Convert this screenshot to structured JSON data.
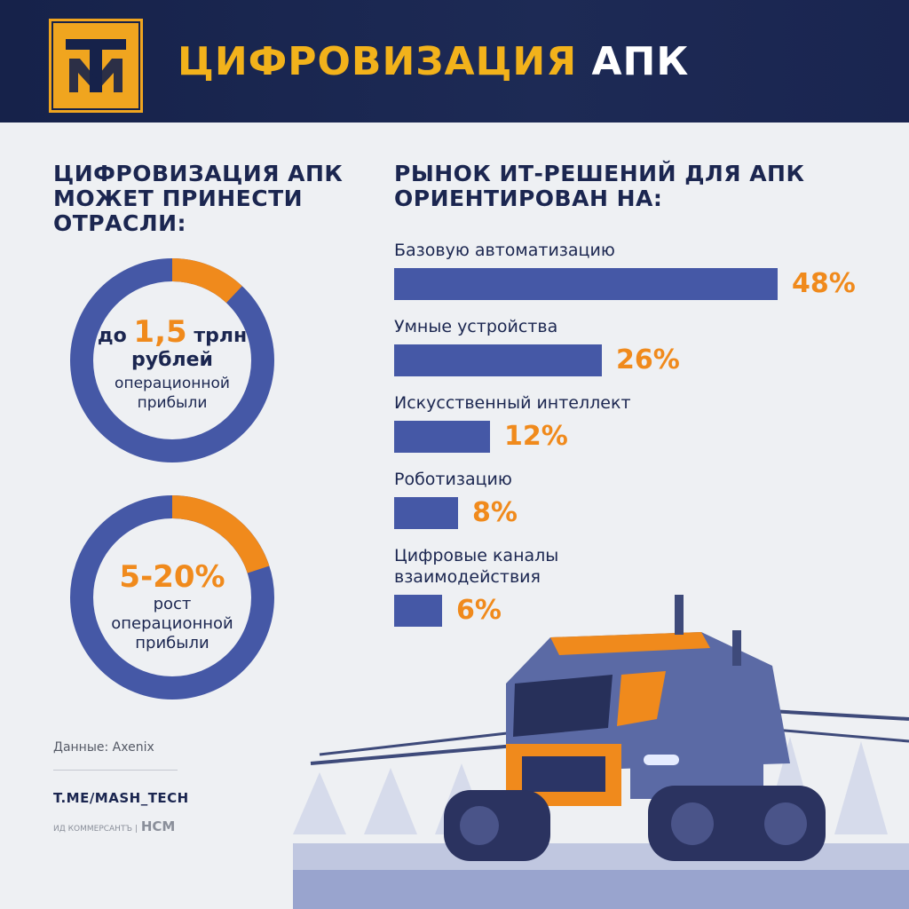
{
  "header": {
    "title_part1": "ЦИФРОВИЗАЦИЯ",
    "title_part2": "АПК",
    "logo_icon": "tm-logo-icon"
  },
  "left": {
    "heading": [
      "ЦИФРОВИЗАЦИЯ АПК",
      "МОЖЕТ ПРИНЕСТИ",
      "ОТРАСЛИ:"
    ],
    "donut1": {
      "prefix": "до",
      "value": "1,5",
      "unit": "трлн",
      "line2": "рублей",
      "line3": [
        "операционной",
        "прибыли"
      ],
      "highlight_fraction": 0.12
    },
    "donut2": {
      "value": "5-20%",
      "lines": [
        "рост",
        "операционной",
        "прибыли"
      ],
      "highlight_fraction": 0.2
    },
    "source": "Данные: Axenix",
    "channel": "T.ME/MASH_TECH",
    "credits": "ИД КОММЕРСАНТЪ",
    "credits_sep": "|",
    "credits_hcm": "HCM"
  },
  "colors": {
    "navy": "#1b2650",
    "bar": "#4558a6",
    "accent": "#f08a1c",
    "logo": "#f0a51f"
  },
  "chart_data": {
    "type": "bar",
    "title": [
      "РЫНОК ИТ-РЕШЕНИЙ ДЛЯ АПК",
      "ОРИЕНТИРОВАН НА:"
    ],
    "categories": [
      [
        "Базовую автоматизацию"
      ],
      [
        "Умные устройства"
      ],
      [
        "Искусственный интеллект"
      ],
      [
        "Роботизацию"
      ],
      [
        "Цифровые каналы",
        "взаимодействия"
      ]
    ],
    "values": [
      48,
      26,
      12,
      8,
      6
    ],
    "value_labels": [
      "48%",
      "26%",
      "12%",
      "8%",
      "6%"
    ]
  }
}
